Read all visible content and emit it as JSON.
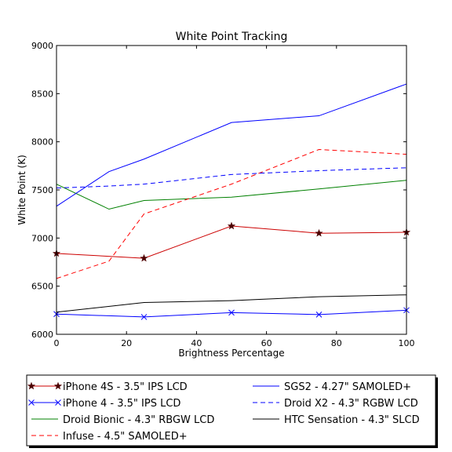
{
  "chart_data": {
    "type": "line",
    "title": "White Point Tracking",
    "xlabel": "Brightness Percentage",
    "ylabel": "White Point (K)",
    "xlim": [
      0,
      100
    ],
    "ylim": [
      6000,
      9000
    ],
    "xticks": [
      0,
      20,
      40,
      60,
      80,
      100
    ],
    "yticks": [
      6000,
      6500,
      7000,
      7500,
      8000,
      8500,
      9000
    ],
    "grid": false,
    "legend_placement": "below plot, two columns, boxed",
    "series": [
      {
        "name": "iPhone 4S - 3.5\" IPS LCD",
        "color": "#cc0000",
        "dash": "solid",
        "marker": "star",
        "x": [
          0,
          25,
          50,
          75,
          100
        ],
        "y": [
          6840,
          6790,
          7125,
          7050,
          7060
        ]
      },
      {
        "name": "iPhone 4 - 3.5\" IPS LCD",
        "color": "#0000ff",
        "dash": "solid",
        "marker": "x",
        "x": [
          0,
          25,
          50,
          75,
          100
        ],
        "y": [
          6210,
          6180,
          6225,
          6205,
          6250
        ]
      },
      {
        "name": "Droid Bionic - 4.3\" RBGW LCD",
        "color": "#008000",
        "dash": "solid",
        "marker": "none",
        "x": [
          0,
          15,
          25,
          50,
          75,
          100
        ],
        "y": [
          7560,
          7300,
          7390,
          7425,
          7510,
          7600
        ]
      },
      {
        "name": "Infuse - 4.5\" SAMOLED+",
        "color": "#ff0000",
        "dash": "dashed",
        "marker": "none",
        "x": [
          0,
          15,
          25,
          50,
          75,
          100
        ],
        "y": [
          6580,
          6760,
          7250,
          7560,
          7920,
          7870
        ]
      },
      {
        "name": "SGS2 - 4.27\" SAMOLED+",
        "color": "#0000ff",
        "dash": "solid",
        "marker": "none",
        "x": [
          0,
          15,
          25,
          50,
          75,
          100
        ],
        "y": [
          7330,
          7690,
          7820,
          8200,
          8270,
          8600
        ]
      },
      {
        "name": "Droid X2 - 4.3\" RGBW LCD",
        "color": "#0000ff",
        "dash": "dashed",
        "marker": "none",
        "x": [
          0,
          15,
          25,
          50,
          75,
          100
        ],
        "y": [
          7520,
          7540,
          7560,
          7660,
          7700,
          7730
        ]
      },
      {
        "name": "HTC Sensation - 4.3\" SLCD",
        "color": "#000000",
        "dash": "solid",
        "marker": "none",
        "x": [
          0,
          25,
          50,
          75,
          100
        ],
        "y": [
          6230,
          6330,
          6350,
          6390,
          6410
        ]
      }
    ]
  }
}
